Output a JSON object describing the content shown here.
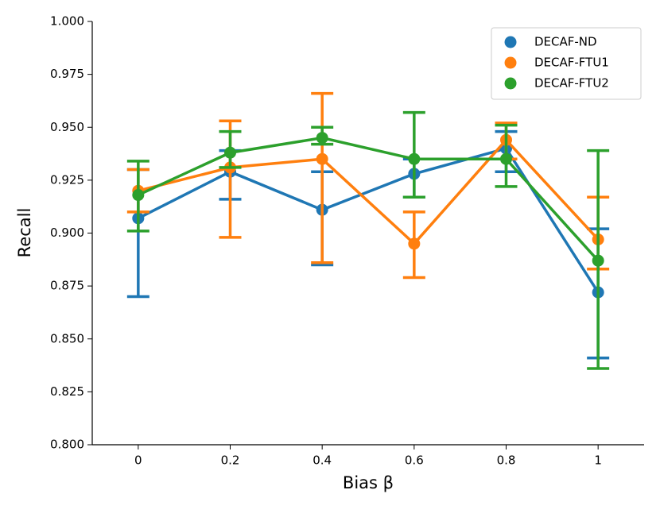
{
  "chart_data": {
    "type": "pointplot",
    "xlabel": "Bias β",
    "ylabel": "Recall",
    "categories": [
      "0",
      "0.2",
      "0.4",
      "0.6",
      "0.8",
      "1"
    ],
    "ylim": [
      0.8,
      1.0
    ],
    "yticks": [
      {
        "value": 0.8,
        "label": "0.800"
      },
      {
        "value": 0.825,
        "label": "0.825"
      },
      {
        "value": 0.85,
        "label": "0.850"
      },
      {
        "value": 0.875,
        "label": "0.875"
      },
      {
        "value": 0.9,
        "label": "0.900"
      },
      {
        "value": 0.925,
        "label": "0.925"
      },
      {
        "value": 0.95,
        "label": "0.950"
      },
      {
        "value": 0.975,
        "label": "0.975"
      },
      {
        "value": 1.0,
        "label": "1.000"
      }
    ],
    "legend": "upper right",
    "series": [
      {
        "name": "DECAF-ND",
        "color": "#1f77b4",
        "values": [
          0.907,
          0.929,
          0.911,
          0.928,
          0.94,
          0.872
        ],
        "ci_low": [
          0.87,
          0.916,
          0.885,
          0.917,
          0.929,
          0.841
        ],
        "ci_high": [
          0.93,
          0.939,
          0.929,
          0.935,
          0.948,
          0.902
        ]
      },
      {
        "name": "DECAF-FTU1",
        "color": "#ff7f0e",
        "values": [
          0.92,
          0.931,
          0.935,
          0.895,
          0.944,
          0.897
        ],
        "ci_low": [
          0.91,
          0.898,
          0.886,
          0.879,
          0.935,
          0.883
        ],
        "ci_high": [
          0.93,
          0.953,
          0.966,
          0.91,
          0.952,
          0.917
        ]
      },
      {
        "name": "DECAF-FTU2",
        "color": "#2ca02c",
        "values": [
          0.918,
          0.938,
          0.945,
          0.935,
          0.935,
          0.887
        ],
        "ci_low": [
          0.901,
          0.931,
          0.942,
          0.917,
          0.922,
          0.836
        ],
        "ci_high": [
          0.934,
          0.948,
          0.95,
          0.957,
          0.951,
          0.939
        ]
      }
    ]
  }
}
